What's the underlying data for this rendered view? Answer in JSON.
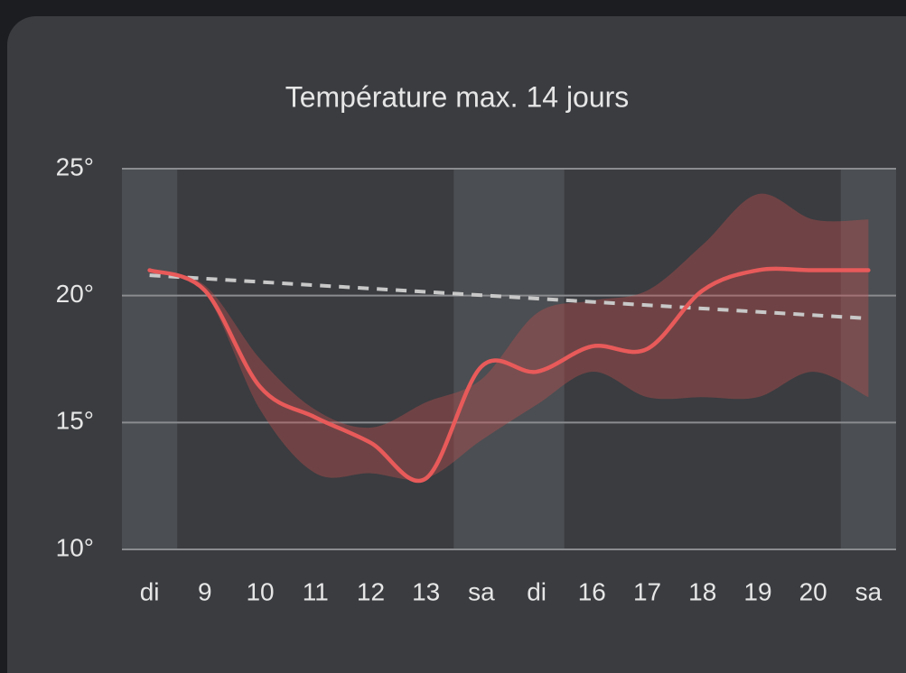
{
  "chart_data": {
    "type": "line",
    "title": "Température max. 14 jours",
    "categories": [
      "di",
      "9",
      "10",
      "11",
      "12",
      "13",
      "sa",
      "di",
      "16",
      "17",
      "18",
      "19",
      "20",
      "sa"
    ],
    "values": [
      21,
      20.2,
      16.4,
      15.2,
      14.2,
      12.8,
      17.2,
      17.0,
      18.0,
      17.9,
      20.2,
      21.0,
      21.0,
      21.0
    ],
    "low": [
      21,
      20.1,
      15.5,
      13.0,
      13.0,
      12.8,
      14.3,
      15.7,
      17.0,
      16.0,
      16.0,
      16.0,
      17.0,
      16.0
    ],
    "high": [
      21,
      20.4,
      17.5,
      15.5,
      14.8,
      15.8,
      16.7,
      19.3,
      19.8,
      20.2,
      22.0,
      24.0,
      23.0,
      23.0
    ],
    "trend": {
      "start": 20.8,
      "end": 19.1
    },
    "shaded": [
      true,
      false,
      false,
      false,
      false,
      false,
      true,
      true,
      false,
      false,
      false,
      false,
      false,
      true
    ],
    "color": "#e85a5a",
    "band_color": "rgba(196,80,78,0.38)",
    "trend_color": "#c8c8c8",
    "ylim": [
      10,
      25
    ],
    "yticks": [
      {
        "value": 10,
        "label": "10°"
      },
      {
        "value": 15,
        "label": "15°"
      },
      {
        "value": 20,
        "label": "20°"
      },
      {
        "value": 25,
        "label": "25°"
      }
    ],
    "grid": true
  }
}
